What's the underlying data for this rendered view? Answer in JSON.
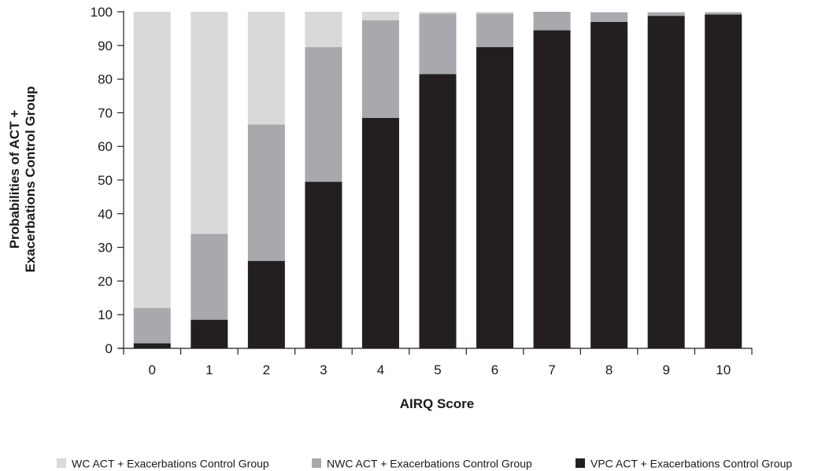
{
  "chart_data": {
    "type": "bar",
    "stacked": true,
    "title": "",
    "xlabel": "AIRQ Score",
    "ylabel_lines": [
      "Probabilities of ACT +",
      "Exacerbations Control Group"
    ],
    "ylim": [
      0,
      100
    ],
    "yticks": [
      0,
      10,
      20,
      30,
      40,
      50,
      60,
      70,
      80,
      90,
      100
    ],
    "categories": [
      "0",
      "1",
      "2",
      "3",
      "4",
      "5",
      "6",
      "7",
      "8",
      "9",
      "10"
    ],
    "series": [
      {
        "name": "VPC ACT + Exacerbations Control Group",
        "color": "#231f20",
        "values": [
          1.5,
          8.5,
          26,
          49.5,
          68.5,
          81.5,
          89.5,
          94.5,
          97,
          98.8,
          99.2
        ]
      },
      {
        "name": "NWC ACT + Exacerbations Control Group",
        "color": "#a7a9ac",
        "values": [
          10.5,
          25.5,
          40.5,
          40,
          29,
          18,
          10,
          5.5,
          2.8,
          1.0,
          0.6
        ]
      },
      {
        "name": "WC ACT + Exacerbations Control Group",
        "color": "#d9d9d9",
        "values": [
          88,
          66,
          33.5,
          10.5,
          2.5,
          0.5,
          0.5,
          0,
          0.2,
          0.2,
          0.2
        ]
      }
    ],
    "legend_order": [
      2,
      1,
      0
    ],
    "legend_position": "bottom",
    "grid": false
  }
}
